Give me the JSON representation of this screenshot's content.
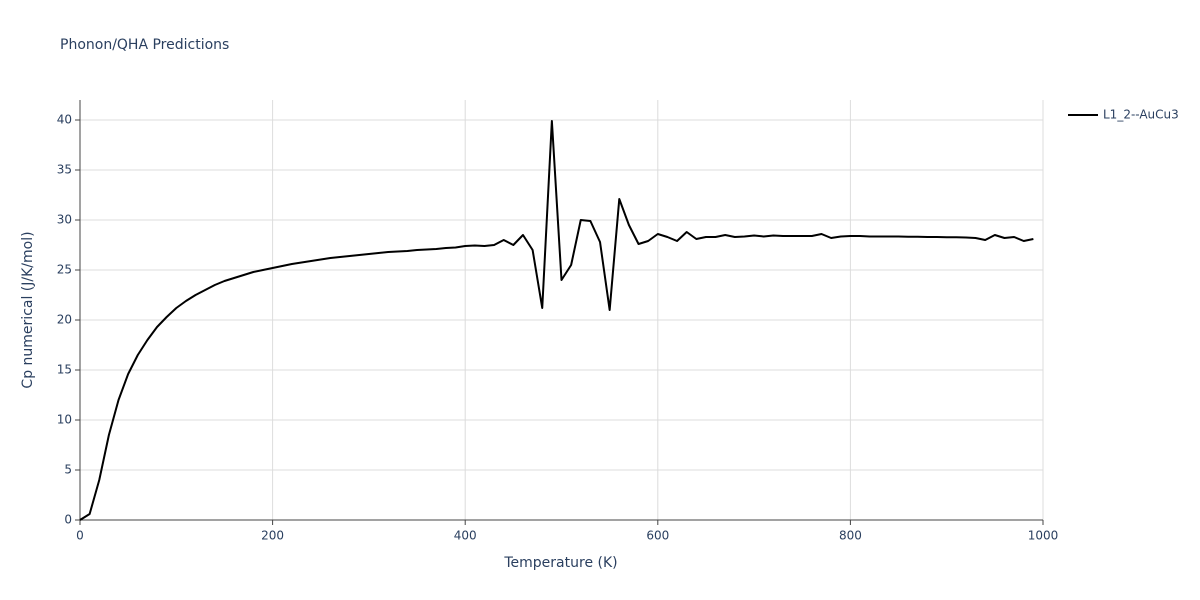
{
  "chart_data": {
    "type": "line",
    "title": "Phonon/QHA Predictions",
    "x_label": "Temperature (K)",
    "y_label": "Cp numerical (J/K/mol)",
    "x": [
      0,
      10,
      20,
      30,
      40,
      50,
      60,
      70,
      80,
      90,
      100,
      110,
      120,
      130,
      140,
      150,
      160,
      170,
      180,
      190,
      200,
      210,
      220,
      230,
      240,
      250,
      260,
      270,
      280,
      290,
      300,
      310,
      320,
      330,
      340,
      350,
      360,
      370,
      380,
      390,
      400,
      410,
      420,
      430,
      440,
      450,
      460,
      470,
      480,
      490,
      500,
      510,
      520,
      530,
      540,
      550,
      560,
      570,
      580,
      590,
      600,
      610,
      620,
      630,
      640,
      650,
      660,
      670,
      680,
      690,
      700,
      710,
      720,
      730,
      740,
      750,
      760,
      770,
      780,
      790,
      800,
      810,
      820,
      830,
      840,
      850,
      860,
      870,
      880,
      890,
      900,
      910,
      920,
      930,
      940,
      950,
      960,
      970,
      980,
      990
    ],
    "series": [
      {
        "name": "L1_2--AuCu3",
        "color": "#000000",
        "values": [
          0,
          0.6,
          4,
          8.5,
          12,
          14.6,
          16.5,
          18,
          19.3,
          20.3,
          21.2,
          21.9,
          22.5,
          23,
          23.5,
          23.9,
          24.2,
          24.5,
          24.8,
          25,
          25.2,
          25.4,
          25.6,
          25.75,
          25.9,
          26.05,
          26.2,
          26.3,
          26.4,
          26.5,
          26.6,
          26.7,
          26.8,
          26.85,
          26.9,
          27,
          27.05,
          27.1,
          27.2,
          27.25,
          27.4,
          27.45,
          27.4,
          27.5,
          28,
          27.5,
          28.5,
          27,
          21.2,
          39.9,
          24,
          25.5,
          30,
          29.9,
          27.8,
          21,
          32.1,
          29.5,
          27.6,
          27.9,
          28.6,
          28.3,
          27.9,
          28.8,
          28.1,
          28.3,
          28.3,
          28.5,
          28.3,
          28.35,
          28.45,
          28.35,
          28.45,
          28.4,
          28.4,
          28.4,
          28.4,
          28.6,
          28.2,
          28.35,
          28.4,
          28.4,
          28.35,
          28.35,
          28.35,
          28.35,
          28.33,
          28.32,
          28.3,
          28.3,
          28.28,
          28.27,
          28.25,
          28.2,
          28,
          28.5,
          28.2,
          28.3,
          27.9,
          28.1
        ]
      }
    ],
    "xlim": [
      0,
      1000
    ],
    "xticks": [
      0,
      200,
      400,
      600,
      800,
      1000
    ],
    "ylim": [
      0,
      40
    ],
    "yticks": [
      0,
      5,
      10,
      15,
      20,
      25,
      30,
      35,
      40
    ],
    "grid": true,
    "legend": "right"
  }
}
